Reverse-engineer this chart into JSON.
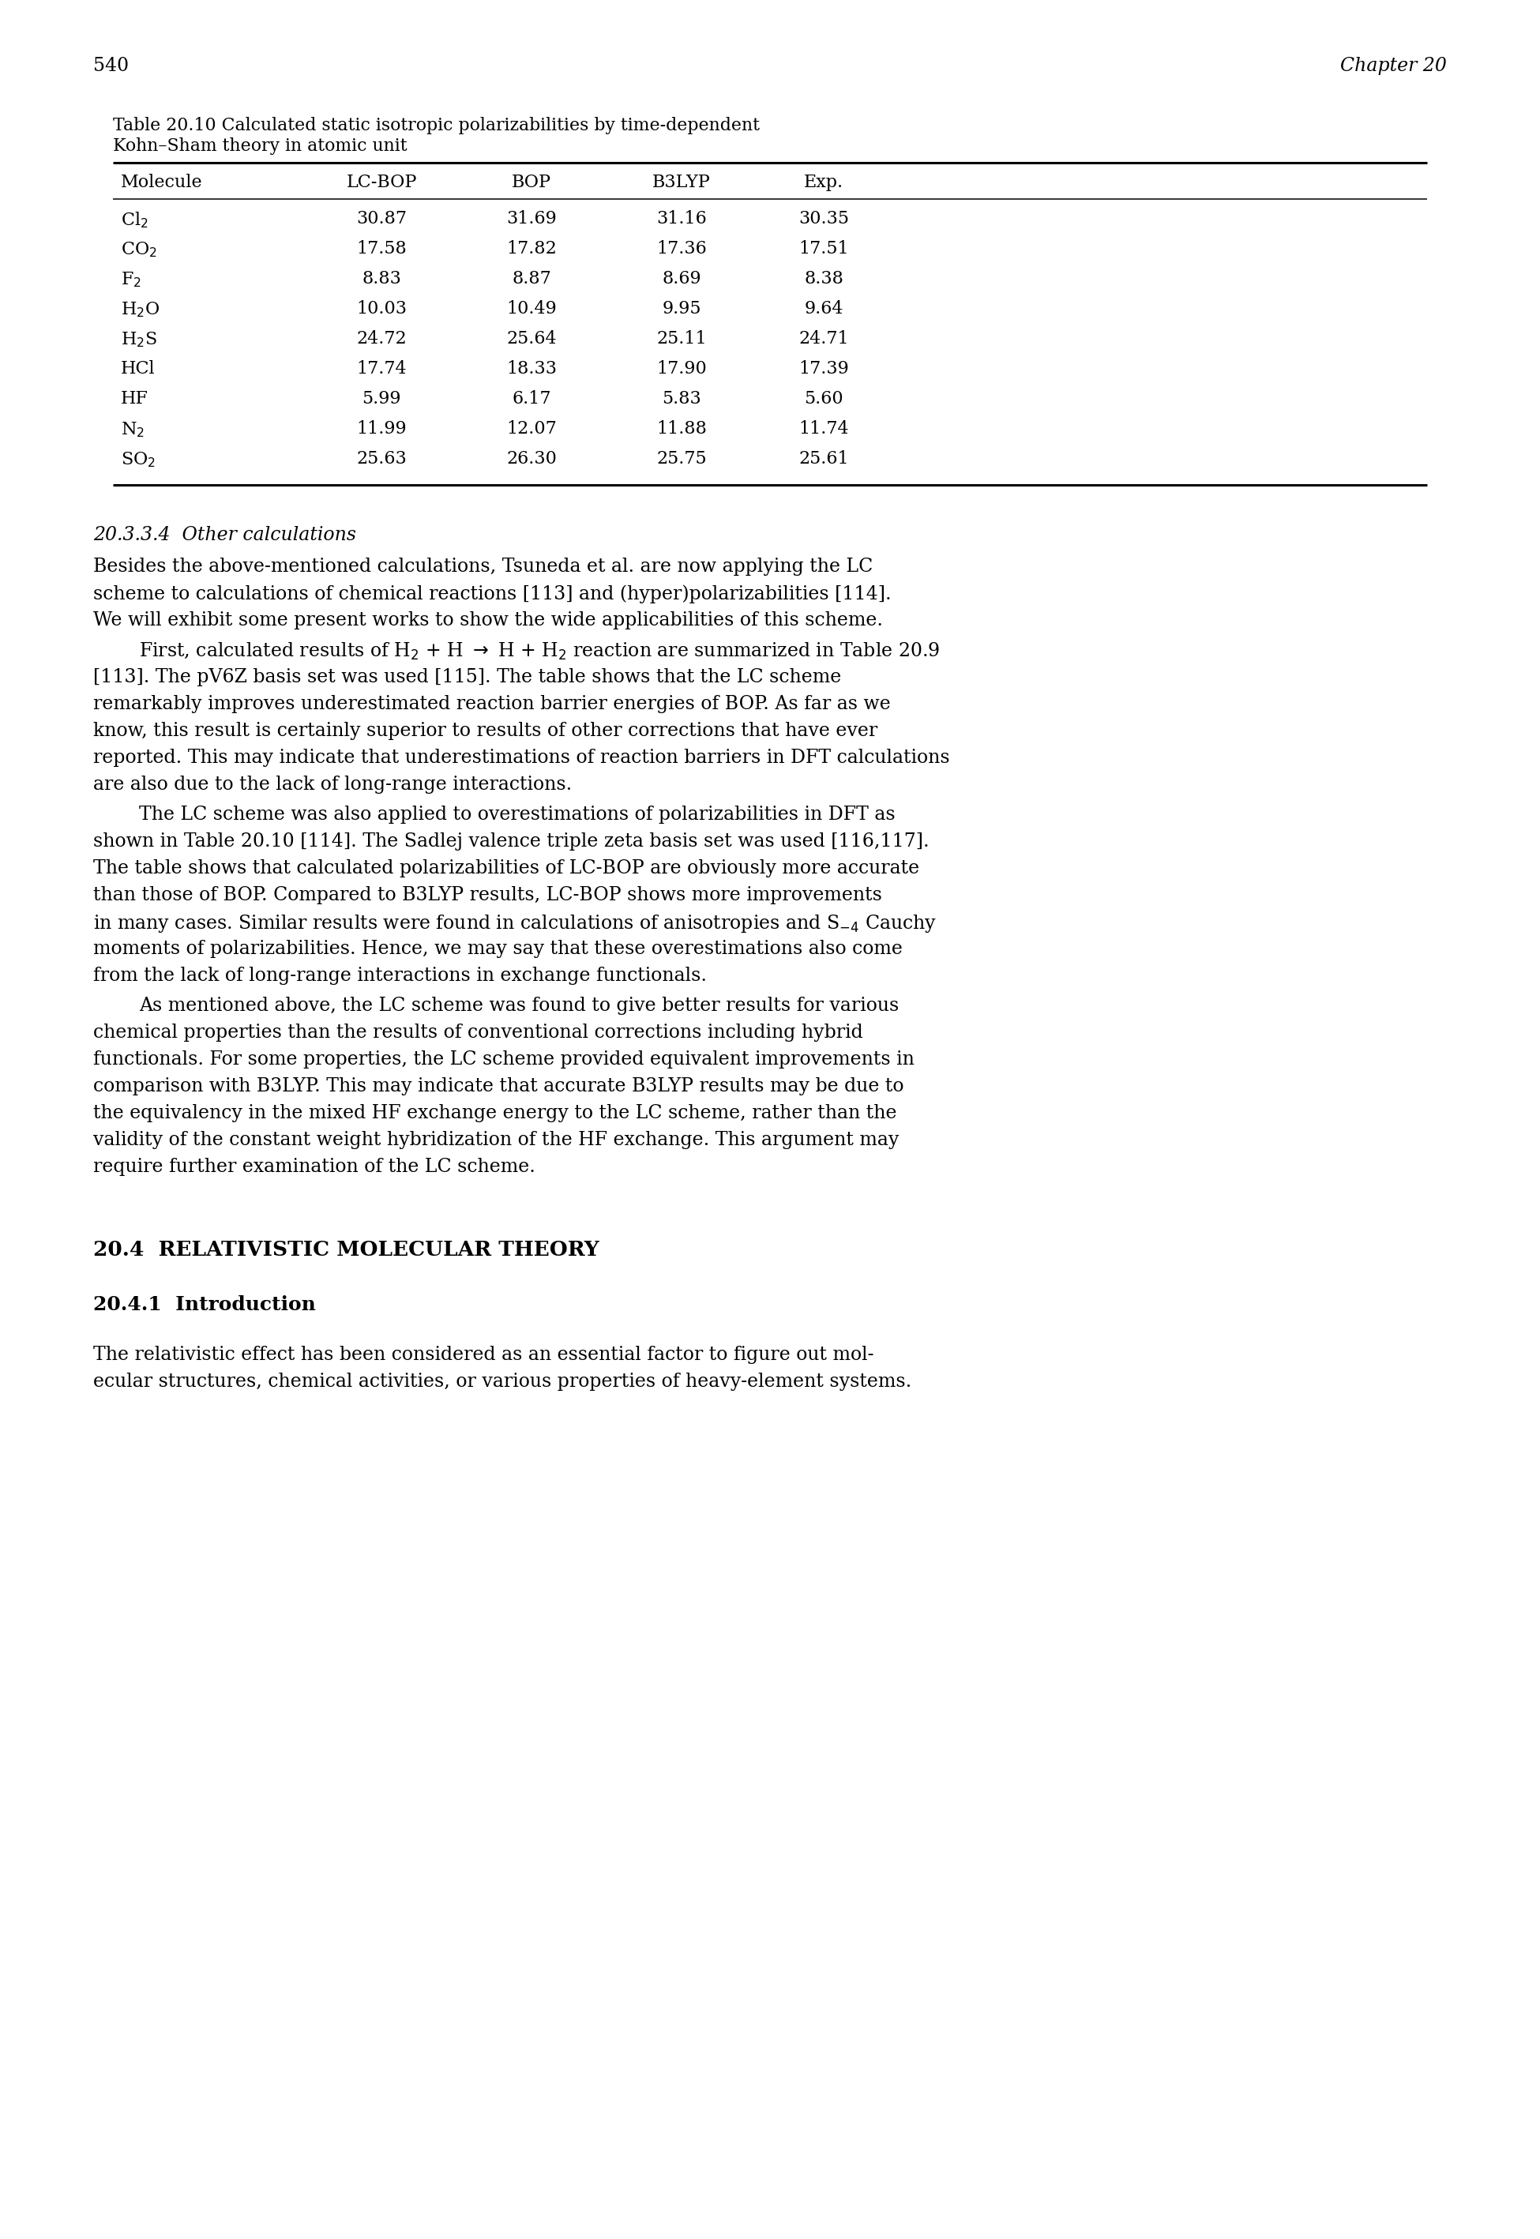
{
  "page_number": "540",
  "chapter": "Chapter 20",
  "table_caption_line1": "Table 20.10 Calculated static isotropic polarizabilities by time-dependent",
  "table_caption_line2": "Kohn–Sham theory in atomic unit",
  "table_headers": [
    "Molecule",
    "LC-BOP",
    "BOP",
    "B3LYP",
    "Exp."
  ],
  "table_row_molecules": [
    "Cl$_2$",
    "CO$_2$",
    "F$_2$",
    "H$_2$O",
    "H$_2$S",
    "HCl",
    "HF",
    "N$_2$",
    "SO$_2$"
  ],
  "table_row_data": [
    [
      "30.87",
      "31.69",
      "31.16",
      "30.35"
    ],
    [
      "17.58",
      "17.82",
      "17.36",
      "17.51"
    ],
    [
      "8.83",
      "8.87",
      "8.69",
      "8.38"
    ],
    [
      "10.03",
      "10.49",
      "9.95",
      "9.64"
    ],
    [
      "24.72",
      "25.64",
      "25.11",
      "24.71"
    ],
    [
      "17.74",
      "18.33",
      "17.90",
      "17.39"
    ],
    [
      "5.99",
      "6.17",
      "5.83",
      "5.60"
    ],
    [
      "11.99",
      "12.07",
      "11.88",
      "11.74"
    ],
    [
      "25.63",
      "26.30",
      "25.75",
      "25.61"
    ]
  ],
  "section_heading": "20.3.3.4  Other calculations",
  "p1_lines": [
    "Besides the above-mentioned calculations, Tsuneda et al. are now applying the LC",
    "scheme to calculations of chemical reactions [113] and (hyper)polarizabilities [114].",
    "We will exhibit some present works to show the wide applicabilities of this scheme."
  ],
  "p2_line1": "First, calculated results of H$_2$ + H $\\rightarrow$ H + H$_2$ reaction are summarized in Table 20.9",
  "p2_lines": [
    "[113]. The pV6Z basis set was used [115]. The table shows that the LC scheme",
    "remarkably improves underestimated reaction barrier energies of BOP. As far as we",
    "know, this result is certainly superior to results of other corrections that have ever",
    "reported. This may indicate that underestimations of reaction barriers in DFT calculations",
    "are also due to the lack of long-range interactions."
  ],
  "p3_line1": "The LC scheme was also applied to overestimations of polarizabilities in DFT as",
  "p3_lines": [
    "shown in Table 20.10 [114]. The Sadlej valence triple zeta basis set was used [116,117].",
    "The table shows that calculated polarizabilities of LC-BOP are obviously more accurate",
    "than those of BOP. Compared to B3LYP results, LC-BOP shows more improvements",
    "in many cases. Similar results were found in calculations of anisotropies and S$_{-4}$ Cauchy",
    "moments of polarizabilities. Hence, we may say that these overestimations also come",
    "from the lack of long-range interactions in exchange functionals."
  ],
  "p4_line1": "As mentioned above, the LC scheme was found to give better results for various",
  "p4_lines": [
    "chemical properties than the results of conventional corrections including hybrid",
    "functionals. For some properties, the LC scheme provided equivalent improvements in",
    "comparison with B3LYP. This may indicate that accurate B3LYP results may be due to",
    "the equivalency in the mixed HF exchange energy to the LC scheme, rather than the",
    "validity of the constant weight hybridization of the HF exchange. This argument may",
    "require further examination of the LC scheme."
  ],
  "section2_heading": "20.4  RELATIVISTIC MOLECULAR THEORY",
  "section3_heading": "20.4.1  Introduction",
  "p5_lines": [
    "The relativistic effect has been considered as an essential factor to figure out mol-",
    "ecular structures, chemical activities, or various properties of heavy-element systems."
  ],
  "bg_color": "#ffffff",
  "text_color": "#000000"
}
